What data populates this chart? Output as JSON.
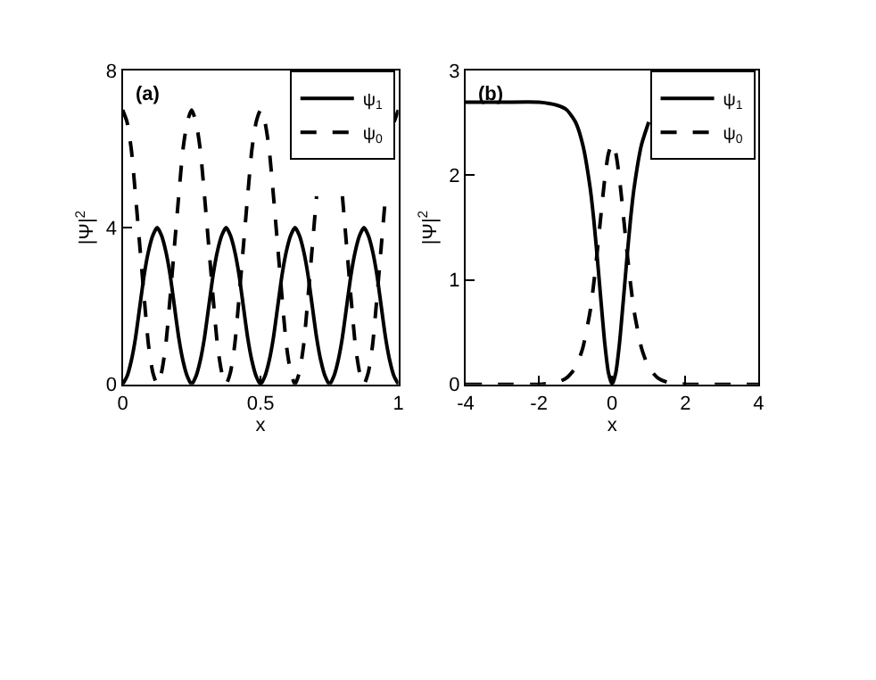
{
  "chart_data": [
    {
      "type": "line",
      "annotations": [
        "(a)"
      ],
      "xlabel": "x",
      "ylabel": "|Ψ|$^{2}$",
      "xlim": [
        0,
        1
      ],
      "xticks": [
        0,
        0.5,
        1
      ],
      "ylim": [
        0,
        8
      ],
      "yticks": [
        0,
        4,
        8
      ],
      "legend": "top right",
      "x": [
        0,
        0.015625,
        0.03125,
        0.046875,
        0.0625,
        0.078125,
        0.09375,
        0.109375,
        0.125,
        0.140625,
        0.15625,
        0.171875,
        0.1875,
        0.203125,
        0.21875,
        0.234375,
        0.25,
        0.265625,
        0.28125,
        0.296875,
        0.3125,
        0.328125,
        0.34375,
        0.359375,
        0.375,
        0.390625,
        0.40625,
        0.421875,
        0.4375,
        0.453125,
        0.46875,
        0.484375,
        0.5,
        0.515625,
        0.53125,
        0.546875,
        0.5625,
        0.578125,
        0.59375,
        0.609375,
        0.625,
        0.640625,
        0.65625,
        0.671875,
        0.6875,
        0.703125,
        0.71875,
        0.734375,
        0.75,
        0.765625,
        0.78125,
        0.796875,
        0.8125,
        0.828125,
        0.84375,
        0.859375,
        0.875,
        0.890625,
        0.90625,
        0.921875,
        0.9375,
        0.953125,
        0.96875,
        0.984375,
        1
      ],
      "series": [
        {
          "name": "ψ$_{1}$",
          "color": "#000000",
          "line_style": "solid",
          "values": [
            0,
            0.2,
            0.6,
            1.2,
            2,
            2.8,
            3.4,
            3.8,
            4,
            3.8,
            3.4,
            2.8,
            2,
            1.2,
            0.6,
            0.2,
            0,
            0.2,
            0.6,
            1.2,
            2,
            2.8,
            3.4,
            3.8,
            4,
            3.8,
            3.4,
            2.8,
            2,
            1.2,
            0.6,
            0.2,
            0,
            0.2,
            0.6,
            1.2,
            2,
            2.8,
            3.4,
            3.8,
            4,
            3.8,
            3.4,
            2.8,
            2,
            1.2,
            0.6,
            0.2,
            0,
            0.2,
            0.6,
            1.2,
            2,
            2.8,
            3.4,
            3.8,
            4,
            3.8,
            3.4,
            2.8,
            2,
            1.2,
            0.6,
            0.2,
            0
          ]
        },
        {
          "name": "ψ$_{0}$",
          "color": "#000000",
          "line_style": "dashed",
          "values": [
            7,
            6.7,
            6,
            4.8,
            3.5,
            2.2,
            1,
            0.3,
            0,
            0.3,
            1,
            2.2,
            3.5,
            4.8,
            6,
            6.7,
            7,
            6.7,
            6,
            4.8,
            3.5,
            2.2,
            1,
            0.3,
            0,
            0.3,
            1,
            2.2,
            3.5,
            4.8,
            6,
            6.7,
            7,
            6.7,
            6,
            4.8,
            3.5,
            2.2,
            1,
            0.3,
            0,
            0.3,
            1,
            2.2,
            3.5,
            4.8,
            null,
            null,
            null,
            null,
            null,
            4.8,
            3.5,
            2.2,
            1,
            0.3,
            0,
            0.3,
            1,
            2.2,
            3.5,
            4.8,
            null,
            6.7,
            7
          ]
        }
      ]
    },
    {
      "type": "line",
      "annotations": [
        "(b)"
      ],
      "xlabel": "x",
      "ylabel": "|Ψ|$^{2}$",
      "xlim": [
        -4,
        4
      ],
      "xticks": [
        -4,
        -2,
        0,
        2,
        4
      ],
      "ylim": [
        0,
        3
      ],
      "yticks": [
        0,
        1,
        2,
        3
      ],
      "legend": "top right",
      "x": [
        -4,
        -3,
        -2,
        -1.5,
        -1.25,
        -1,
        -0.8,
        -0.6,
        -0.5,
        -0.4,
        -0.3,
        -0.2,
        -0.1,
        0,
        0.1,
        0.2,
        0.3,
        0.4,
        0.5,
        0.6,
        0.8,
        1,
        1.25,
        1.5,
        1.75,
        2,
        2.5,
        3,
        3.5,
        3.9,
        4
      ],
      "series": [
        {
          "name": "ψ$_{1}$",
          "color": "#000000",
          "line_style": "solid",
          "values": [
            2.7,
            2.7,
            2.7,
            2.67,
            2.63,
            2.51,
            2.29,
            1.88,
            1.57,
            1.19,
            0.78,
            0.39,
            0.11,
            0,
            0.11,
            0.39,
            0.78,
            1.19,
            1.57,
            1.88,
            2.29,
            2.51,
            null,
            null,
            null,
            null,
            null,
            null,
            null,
            null,
            null
          ]
        },
        {
          "name": "ψ$_{0}$",
          "color": "#000000",
          "line_style": "dashed",
          "values": [
            0,
            0,
            0,
            0.02,
            0.06,
            0.16,
            0.35,
            0.7,
            0.97,
            1.29,
            1.64,
            1.97,
            2.21,
            2.3,
            2.21,
            1.97,
            1.64,
            1.29,
            0.97,
            0.7,
            0.35,
            0.16,
            0.06,
            0.02,
            0.01,
            0,
            0,
            0,
            0,
            0,
            0
          ]
        }
      ]
    }
  ]
}
